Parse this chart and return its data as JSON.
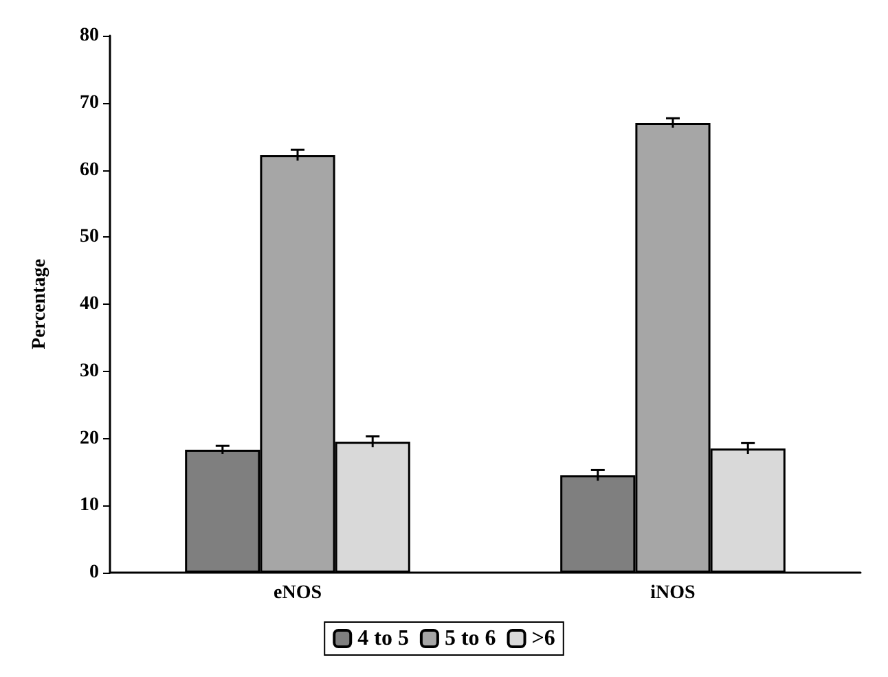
{
  "chart_data": {
    "type": "bar",
    "ylabel": "Percentage",
    "categories": [
      "eNOS",
      "iNOS"
    ],
    "series": [
      {
        "name": "4 to 5",
        "color": "#7f7f7f",
        "values": [
          18.3,
          14.5
        ],
        "errors": [
          0.6,
          0.8
        ]
      },
      {
        "name": "5 to 6",
        "color": "#a6a6a6",
        "values": [
          62.2,
          67
        ],
        "errors": [
          0.8,
          0.7
        ]
      },
      {
        "name": ">6",
        "color": "#d9d9d9",
        "values": [
          19.5,
          18.5
        ],
        "errors": [
          0.8,
          0.8
        ]
      }
    ],
    "ylim": [
      0,
      80
    ],
    "yticks": [
      0,
      10,
      20,
      30,
      40,
      50,
      60,
      70,
      80
    ],
    "grid": false,
    "legend": "bottom"
  }
}
